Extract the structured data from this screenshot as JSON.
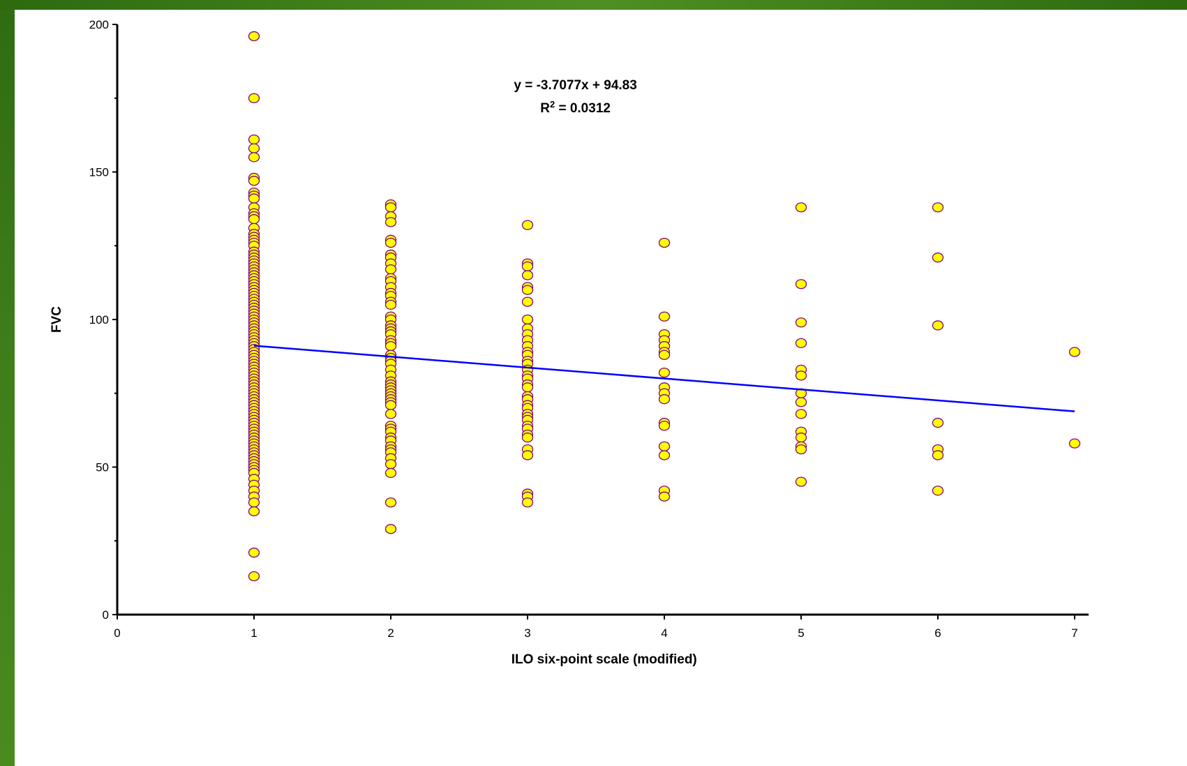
{
  "colors": {
    "point_fill": "#ffff00",
    "point_stroke": "#800080",
    "trendline": "#0000ff",
    "axis": "#000000"
  },
  "chart_data": {
    "type": "scatter",
    "xlabel": "ILO six-point scale (modified)",
    "ylabel": "FVC",
    "xlim": [
      0,
      7
    ],
    "ylim": [
      0,
      200
    ],
    "x_ticks": [
      "0",
      "1",
      "2",
      "3",
      "4",
      "5",
      "6",
      "7"
    ],
    "y_ticks": [
      "0",
      "50",
      "100",
      "150",
      "200"
    ],
    "grid": false,
    "legend": "none",
    "series": [
      {
        "points": [
          {
            "x": 1,
            "y": 196
          },
          {
            "x": 1,
            "y": 175
          },
          {
            "x": 1,
            "y": 161
          },
          {
            "x": 1,
            "y": 158
          },
          {
            "x": 1,
            "y": 155
          },
          {
            "x": 1,
            "y": 148
          },
          {
            "x": 1,
            "y": 147
          },
          {
            "x": 1,
            "y": 143
          },
          {
            "x": 1,
            "y": 142
          },
          {
            "x": 1,
            "y": 141
          },
          {
            "x": 1,
            "y": 138
          },
          {
            "x": 1,
            "y": 136
          },
          {
            "x": 1,
            "y": 135
          },
          {
            "x": 1,
            "y": 134
          },
          {
            "x": 1,
            "y": 131
          },
          {
            "x": 1,
            "y": 129
          },
          {
            "x": 1,
            "y": 128
          },
          {
            "x": 1,
            "y": 127
          },
          {
            "x": 1,
            "y": 126
          },
          {
            "x": 1,
            "y": 125
          },
          {
            "x": 1,
            "y": 123
          },
          {
            "x": 1,
            "y": 122
          },
          {
            "x": 1,
            "y": 121
          },
          {
            "x": 1,
            "y": 120
          },
          {
            "x": 1,
            "y": 119
          },
          {
            "x": 1,
            "y": 118
          },
          {
            "x": 1,
            "y": 117
          },
          {
            "x": 1,
            "y": 116
          },
          {
            "x": 1,
            "y": 115
          },
          {
            "x": 1,
            "y": 114
          },
          {
            "x": 1,
            "y": 113
          },
          {
            "x": 1,
            "y": 112
          },
          {
            "x": 1,
            "y": 111
          },
          {
            "x": 1,
            "y": 110
          },
          {
            "x": 1,
            "y": 109
          },
          {
            "x": 1,
            "y": 108
          },
          {
            "x": 1,
            "y": 107
          },
          {
            "x": 1,
            "y": 106
          },
          {
            "x": 1,
            "y": 105
          },
          {
            "x": 1,
            "y": 104
          },
          {
            "x": 1,
            "y": 103
          },
          {
            "x": 1,
            "y": 102
          },
          {
            "x": 1,
            "y": 101
          },
          {
            "x": 1,
            "y": 100
          },
          {
            "x": 1,
            "y": 99
          },
          {
            "x": 1,
            "y": 98
          },
          {
            "x": 1,
            "y": 97
          },
          {
            "x": 1,
            "y": 96
          },
          {
            "x": 1,
            "y": 95
          },
          {
            "x": 1,
            "y": 94
          },
          {
            "x": 1,
            "y": 93
          },
          {
            "x": 1,
            "y": 92
          },
          {
            "x": 1,
            "y": 91
          },
          {
            "x": 1,
            "y": 90
          },
          {
            "x": 1,
            "y": 89
          },
          {
            "x": 1,
            "y": 88
          },
          {
            "x": 1,
            "y": 87
          },
          {
            "x": 1,
            "y": 86
          },
          {
            "x": 1,
            "y": 85
          },
          {
            "x": 1,
            "y": 84
          },
          {
            "x": 1,
            "y": 83
          },
          {
            "x": 1,
            "y": 82
          },
          {
            "x": 1,
            "y": 81
          },
          {
            "x": 1,
            "y": 80
          },
          {
            "x": 1,
            "y": 79
          },
          {
            "x": 1,
            "y": 78
          },
          {
            "x": 1,
            "y": 77
          },
          {
            "x": 1,
            "y": 76
          },
          {
            "x": 1,
            "y": 75
          },
          {
            "x": 1,
            "y": 74
          },
          {
            "x": 1,
            "y": 73
          },
          {
            "x": 1,
            "y": 72
          },
          {
            "x": 1,
            "y": 71
          },
          {
            "x": 1,
            "y": 70
          },
          {
            "x": 1,
            "y": 69
          },
          {
            "x": 1,
            "y": 68
          },
          {
            "x": 1,
            "y": 67
          },
          {
            "x": 1,
            "y": 66
          },
          {
            "x": 1,
            "y": 65
          },
          {
            "x": 1,
            "y": 64
          },
          {
            "x": 1,
            "y": 63
          },
          {
            "x": 1,
            "y": 62
          },
          {
            "x": 1,
            "y": 61
          },
          {
            "x": 1,
            "y": 60
          },
          {
            "x": 1,
            "y": 59
          },
          {
            "x": 1,
            "y": 58
          },
          {
            "x": 1,
            "y": 57
          },
          {
            "x": 1,
            "y": 56
          },
          {
            "x": 1,
            "y": 55
          },
          {
            "x": 1,
            "y": 54
          },
          {
            "x": 1,
            "y": 53
          },
          {
            "x": 1,
            "y": 52
          },
          {
            "x": 1,
            "y": 51
          },
          {
            "x": 1,
            "y": 50
          },
          {
            "x": 1,
            "y": 49
          },
          {
            "x": 1,
            "y": 48
          },
          {
            "x": 1,
            "y": 46
          },
          {
            "x": 1,
            "y": 44
          },
          {
            "x": 1,
            "y": 42
          },
          {
            "x": 1,
            "y": 40
          },
          {
            "x": 1,
            "y": 38
          },
          {
            "x": 1,
            "y": 35
          },
          {
            "x": 1,
            "y": 21
          },
          {
            "x": 1,
            "y": 13
          },
          {
            "x": 2,
            "y": 139
          },
          {
            "x": 2,
            "y": 138
          },
          {
            "x": 2,
            "y": 135
          },
          {
            "x": 2,
            "y": 133
          },
          {
            "x": 2,
            "y": 127
          },
          {
            "x": 2,
            "y": 126
          },
          {
            "x": 2,
            "y": 122
          },
          {
            "x": 2,
            "y": 121
          },
          {
            "x": 2,
            "y": 119
          },
          {
            "x": 2,
            "y": 117
          },
          {
            "x": 2,
            "y": 114
          },
          {
            "x": 2,
            "y": 113
          },
          {
            "x": 2,
            "y": 111
          },
          {
            "x": 2,
            "y": 109
          },
          {
            "x": 2,
            "y": 108
          },
          {
            "x": 2,
            "y": 106
          },
          {
            "x": 2,
            "y": 105
          },
          {
            "x": 2,
            "y": 101
          },
          {
            "x": 2,
            "y": 100
          },
          {
            "x": 2,
            "y": 98
          },
          {
            "x": 2,
            "y": 97
          },
          {
            "x": 2,
            "y": 96
          },
          {
            "x": 2,
            "y": 95
          },
          {
            "x": 2,
            "y": 93
          },
          {
            "x": 2,
            "y": 92
          },
          {
            "x": 2,
            "y": 91
          },
          {
            "x": 2,
            "y": 88
          },
          {
            "x": 2,
            "y": 87
          },
          {
            "x": 2,
            "y": 86
          },
          {
            "x": 2,
            "y": 85
          },
          {
            "x": 2,
            "y": 83
          },
          {
            "x": 2,
            "y": 81
          },
          {
            "x": 2,
            "y": 79
          },
          {
            "x": 2,
            "y": 78
          },
          {
            "x": 2,
            "y": 77
          },
          {
            "x": 2,
            "y": 76
          },
          {
            "x": 2,
            "y": 75
          },
          {
            "x": 2,
            "y": 74
          },
          {
            "x": 2,
            "y": 73
          },
          {
            "x": 2,
            "y": 72
          },
          {
            "x": 2,
            "y": 71
          },
          {
            "x": 2,
            "y": 68
          },
          {
            "x": 2,
            "y": 64
          },
          {
            "x": 2,
            "y": 63
          },
          {
            "x": 2,
            "y": 62
          },
          {
            "x": 2,
            "y": 60
          },
          {
            "x": 2,
            "y": 59
          },
          {
            "x": 2,
            "y": 57
          },
          {
            "x": 2,
            "y": 56
          },
          {
            "x": 2,
            "y": 55
          },
          {
            "x": 2,
            "y": 53
          },
          {
            "x": 2,
            "y": 51
          },
          {
            "x": 2,
            "y": 48
          },
          {
            "x": 2,
            "y": 38
          },
          {
            "x": 2,
            "y": 29
          },
          {
            "x": 3,
            "y": 132
          },
          {
            "x": 3,
            "y": 119
          },
          {
            "x": 3,
            "y": 118
          },
          {
            "x": 3,
            "y": 115
          },
          {
            "x": 3,
            "y": 111
          },
          {
            "x": 3,
            "y": 110
          },
          {
            "x": 3,
            "y": 106
          },
          {
            "x": 3,
            "y": 100
          },
          {
            "x": 3,
            "y": 97
          },
          {
            "x": 3,
            "y": 95
          },
          {
            "x": 3,
            "y": 93
          },
          {
            "x": 3,
            "y": 91
          },
          {
            "x": 3,
            "y": 89
          },
          {
            "x": 3,
            "y": 88
          },
          {
            "x": 3,
            "y": 86
          },
          {
            "x": 3,
            "y": 85
          },
          {
            "x": 3,
            "y": 83
          },
          {
            "x": 3,
            "y": 81
          },
          {
            "x": 3,
            "y": 80
          },
          {
            "x": 3,
            "y": 78
          },
          {
            "x": 3,
            "y": 77
          },
          {
            "x": 3,
            "y": 74
          },
          {
            "x": 3,
            "y": 73
          },
          {
            "x": 3,
            "y": 71
          },
          {
            "x": 3,
            "y": 70
          },
          {
            "x": 3,
            "y": 68
          },
          {
            "x": 3,
            "y": 67
          },
          {
            "x": 3,
            "y": 66
          },
          {
            "x": 3,
            "y": 64
          },
          {
            "x": 3,
            "y": 63
          },
          {
            "x": 3,
            "y": 61
          },
          {
            "x": 3,
            "y": 60
          },
          {
            "x": 3,
            "y": 56
          },
          {
            "x": 3,
            "y": 54
          },
          {
            "x": 3,
            "y": 41
          },
          {
            "x": 3,
            "y": 40
          },
          {
            "x": 3,
            "y": 38
          },
          {
            "x": 4,
            "y": 126
          },
          {
            "x": 4,
            "y": 101
          },
          {
            "x": 4,
            "y": 95
          },
          {
            "x": 4,
            "y": 93
          },
          {
            "x": 4,
            "y": 91
          },
          {
            "x": 4,
            "y": 89
          },
          {
            "x": 4,
            "y": 88
          },
          {
            "x": 4,
            "y": 82
          },
          {
            "x": 4,
            "y": 77
          },
          {
            "x": 4,
            "y": 75
          },
          {
            "x": 4,
            "y": 73
          },
          {
            "x": 4,
            "y": 65
          },
          {
            "x": 4,
            "y": 64
          },
          {
            "x": 4,
            "y": 57
          },
          {
            "x": 4,
            "y": 54
          },
          {
            "x": 4,
            "y": 42
          },
          {
            "x": 4,
            "y": 40
          },
          {
            "x": 5,
            "y": 138
          },
          {
            "x": 5,
            "y": 112
          },
          {
            "x": 5,
            "y": 99
          },
          {
            "x": 5,
            "y": 92
          },
          {
            "x": 5,
            "y": 83
          },
          {
            "x": 5,
            "y": 81
          },
          {
            "x": 5,
            "y": 75
          },
          {
            "x": 5,
            "y": 72
          },
          {
            "x": 5,
            "y": 68
          },
          {
            "x": 5,
            "y": 62
          },
          {
            "x": 5,
            "y": 60
          },
          {
            "x": 5,
            "y": 57
          },
          {
            "x": 5,
            "y": 56
          },
          {
            "x": 5,
            "y": 45
          },
          {
            "x": 6,
            "y": 138
          },
          {
            "x": 6,
            "y": 121
          },
          {
            "x": 6,
            "y": 98
          },
          {
            "x": 6,
            "y": 65
          },
          {
            "x": 6,
            "y": 56
          },
          {
            "x": 6,
            "y": 54
          },
          {
            "x": 6,
            "y": 42
          },
          {
            "x": 7,
            "y": 89
          },
          {
            "x": 7,
            "y": 58
          }
        ]
      }
    ],
    "trendline": {
      "type": "linear",
      "slope": -3.7077,
      "intercept": 94.83,
      "x_range": [
        1,
        7
      ],
      "equation_prefix": "y = -3.7077x + 94.83",
      "r2_base": "R",
      "r2_exp": "2",
      "r2_value": " = 0.0312"
    }
  }
}
